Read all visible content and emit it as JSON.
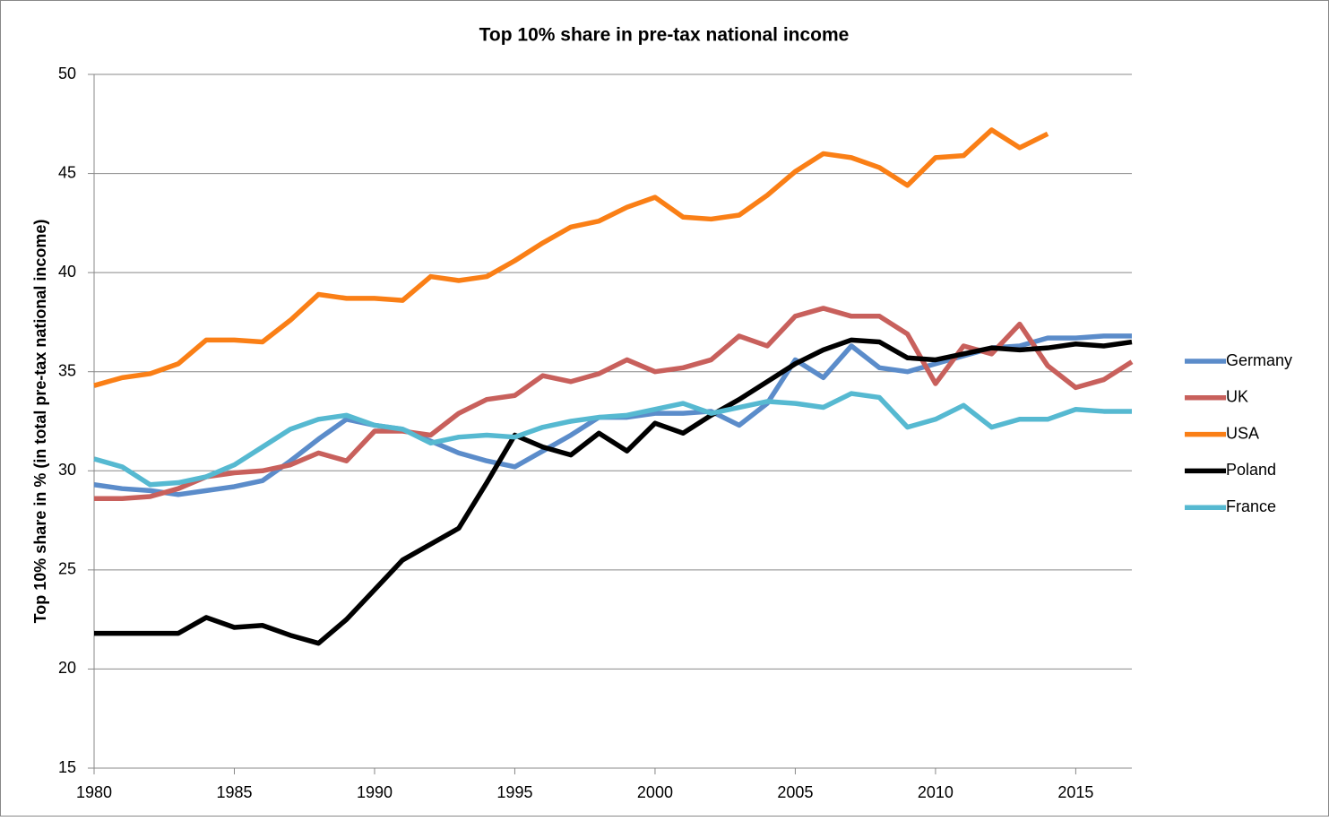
{
  "chart_data": {
    "type": "line",
    "title": "Top 10% share in pre-tax national income",
    "y_label": "Top 10% share in % (in total pre-tax national income)",
    "x": [
      1980,
      1981,
      1982,
      1983,
      1984,
      1985,
      1986,
      1987,
      1988,
      1989,
      1990,
      1991,
      1992,
      1993,
      1994,
      1995,
      1996,
      1997,
      1998,
      1999,
      2000,
      2001,
      2002,
      2003,
      2004,
      2005,
      2006,
      2007,
      2008,
      2009,
      2010,
      2011,
      2012,
      2013,
      2014,
      2015,
      2016,
      2017
    ],
    "series": [
      {
        "name": "Germany",
        "color": "#5b8cca",
        "values": [
          29.3,
          29.1,
          29.0,
          28.8,
          29.0,
          29.2,
          29.5,
          30.5,
          31.6,
          32.6,
          32.3,
          32.1,
          31.5,
          30.9,
          30.5,
          30.2,
          31.0,
          31.8,
          32.7,
          32.7,
          32.9,
          32.9,
          33.0,
          32.3,
          33.4,
          35.6,
          34.7,
          36.3,
          35.2,
          35.0,
          35.4,
          35.8,
          36.2,
          36.3,
          36.7,
          36.7,
          36.8,
          36.8
        ]
      },
      {
        "name": "UK",
        "color": "#c8605c",
        "values": [
          28.6,
          28.6,
          28.7,
          29.1,
          29.7,
          29.9,
          30.0,
          30.3,
          30.9,
          30.5,
          32.0,
          32.0,
          31.8,
          32.9,
          33.6,
          33.8,
          34.8,
          34.5,
          34.9,
          35.6,
          35.0,
          35.2,
          35.6,
          36.8,
          36.3,
          37.8,
          38.2,
          37.8,
          37.8,
          36.9,
          34.4,
          36.3,
          35.9,
          37.4,
          35.3,
          34.2,
          34.6,
          35.5
        ]
      },
      {
        "name": "USA",
        "color": "#fa7f16",
        "values": [
          34.3,
          34.7,
          34.9,
          35.4,
          36.6,
          36.6,
          36.5,
          37.6,
          38.9,
          38.7,
          38.7,
          38.6,
          39.8,
          39.6,
          39.8,
          40.6,
          41.5,
          42.3,
          42.6,
          43.3,
          43.8,
          42.8,
          42.7,
          42.9,
          43.9,
          45.1,
          46.0,
          45.8,
          45.3,
          44.4,
          45.8,
          45.9,
          47.2,
          46.3,
          47.0,
          null,
          null,
          null
        ]
      },
      {
        "name": "Poland",
        "color": "#000000",
        "values": [
          21.8,
          21.8,
          21.8,
          21.8,
          22.6,
          22.1,
          22.2,
          21.7,
          21.3,
          22.5,
          24.0,
          25.5,
          26.3,
          27.1,
          29.4,
          31.8,
          31.2,
          30.8,
          31.9,
          31.0,
          32.4,
          31.9,
          32.8,
          33.6,
          34.5,
          35.4,
          36.1,
          36.6,
          36.5,
          35.7,
          35.6,
          35.9,
          36.2,
          36.1,
          36.2,
          36.4,
          36.3,
          36.5
        ]
      },
      {
        "name": "France",
        "color": "#56b9d1",
        "values": [
          30.6,
          30.2,
          29.3,
          29.4,
          29.7,
          30.3,
          31.2,
          32.1,
          32.6,
          32.8,
          32.3,
          32.1,
          31.4,
          31.7,
          31.8,
          31.7,
          32.2,
          32.5,
          32.7,
          32.8,
          33.1,
          33.4,
          32.9,
          33.2,
          33.5,
          33.4,
          33.2,
          33.9,
          33.7,
          32.2,
          32.6,
          33.3,
          32.2,
          32.6,
          32.6,
          33.1,
          33.0,
          33.0
        ]
      }
    ],
    "xlim": [
      1980,
      2017
    ],
    "xticks": [
      1980,
      1985,
      1990,
      1995,
      2000,
      2005,
      2010,
      2015
    ],
    "ylim": [
      15,
      50
    ],
    "yticks": [
      15,
      20,
      25,
      30,
      35,
      40,
      45,
      50
    ],
    "grid": true,
    "legend": "right"
  }
}
